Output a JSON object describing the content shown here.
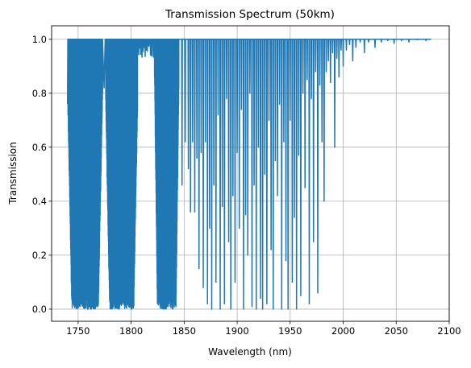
{
  "chart_data": {
    "type": "line",
    "title": "Transmission Spectrum (50km)",
    "xlabel": "Wavelength (nm)",
    "ylabel": "Transmission",
    "xlim": [
      1725,
      2100
    ],
    "ylim": [
      -0.045,
      1.05
    ],
    "x_ticks": [
      1750,
      1800,
      1850,
      1900,
      1950,
      2000,
      2050,
      2100
    ],
    "y_ticks": [
      0.0,
      0.2,
      0.4,
      0.6,
      0.8,
      1.0
    ],
    "x_tick_labels": [
      "1750",
      "1800",
      "1850",
      "1900",
      "1950",
      "2000",
      "2050",
      "2100"
    ],
    "y_tick_labels": [
      "0.0",
      "0.2",
      "0.4",
      "0.6",
      "0.8",
      "1.0"
    ],
    "grid": true,
    "line_color": "#1f77b4",
    "x_range": [
      1740,
      2083
    ],
    "bands": [
      {
        "from": 1740,
        "to": 1773,
        "min": 0.0,
        "note": "dense absorption band"
      },
      {
        "from": 1775,
        "to": 1806,
        "min": 0.0,
        "note": "dense absorption band"
      },
      {
        "from": 1808,
        "to": 1822,
        "min": 0.8,
        "note": "window near 1.0"
      },
      {
        "from": 1822,
        "to": 1845,
        "min": 0.0,
        "note": "dense absorption band"
      }
    ],
    "sample_points": [
      {
        "x": 1740,
        "y": 0.76
      },
      {
        "x": 1741,
        "y": 1.0
      },
      {
        "x": 1745,
        "y": 0.95
      },
      {
        "x": 1750,
        "y": 0.1
      },
      {
        "x": 1755,
        "y": 0.0
      },
      {
        "x": 1760,
        "y": 0.0
      },
      {
        "x": 1765,
        "y": 0.2
      },
      {
        "x": 1770,
        "y": 0.62
      },
      {
        "x": 1774,
        "y": 0.82
      },
      {
        "x": 1780,
        "y": 0.05
      },
      {
        "x": 1785,
        "y": 0.0
      },
      {
        "x": 1790,
        "y": 0.0
      },
      {
        "x": 1798,
        "y": 0.02
      },
      {
        "x": 1803,
        "y": 0.1
      },
      {
        "x": 1812,
        "y": 0.95
      },
      {
        "x": 1818,
        "y": 0.98
      },
      {
        "x": 1825,
        "y": 0.05
      },
      {
        "x": 1835,
        "y": 0.0
      },
      {
        "x": 1843,
        "y": 0.0
      }
    ],
    "dips": [
      [
        1848,
        0.46
      ],
      [
        1851,
        0.62
      ],
      [
        1854,
        0.52
      ],
      [
        1856,
        0.36
      ],
      [
        1858,
        0.62
      ],
      [
        1860,
        0.36
      ],
      [
        1862,
        0.56
      ],
      [
        1864,
        0.15
      ],
      [
        1866,
        0.58
      ],
      [
        1868,
        0.08
      ],
      [
        1870,
        0.62
      ],
      [
        1872,
        0.02
      ],
      [
        1874,
        0.3
      ],
      [
        1876,
        0.0
      ],
      [
        1878,
        0.46
      ],
      [
        1880,
        0.1
      ],
      [
        1882,
        0.72
      ],
      [
        1884,
        0.0
      ],
      [
        1886,
        0.38
      ],
      [
        1888,
        0.02
      ],
      [
        1890,
        0.78
      ],
      [
        1892,
        0.25
      ],
      [
        1894,
        0.0
      ],
      [
        1896,
        0.42
      ],
      [
        1898,
        0.1
      ],
      [
        1900,
        0.58
      ],
      [
        1902,
        0.3
      ],
      [
        1904,
        0.74
      ],
      [
        1906,
        0.0
      ],
      [
        1908,
        0.35
      ],
      [
        1910,
        0.2
      ],
      [
        1912,
        0.8
      ],
      [
        1914,
        0.01
      ],
      [
        1916,
        0.46
      ],
      [
        1918,
        0.0
      ],
      [
        1920,
        0.6
      ],
      [
        1922,
        0.04
      ],
      [
        1924,
        0.0
      ],
      [
        1926,
        0.5
      ],
      [
        1928,
        0.02
      ],
      [
        1930,
        0.7
      ],
      [
        1932,
        0.22
      ],
      [
        1934,
        0.0
      ],
      [
        1936,
        0.55
      ],
      [
        1938,
        0.42
      ],
      [
        1940,
        0.76
      ],
      [
        1942,
        0.0
      ],
      [
        1944,
        0.62
      ],
      [
        1946,
        0.18
      ],
      [
        1948,
        0.0
      ],
      [
        1950,
        0.7
      ],
      [
        1952,
        0.1
      ],
      [
        1954,
        0.34
      ],
      [
        1956,
        0.0
      ],
      [
        1958,
        0.57
      ],
      [
        1960,
        0.05
      ],
      [
        1962,
        0.8
      ],
      [
        1964,
        0.45
      ],
      [
        1966,
        0.85
      ],
      [
        1968,
        0.02
      ],
      [
        1970,
        0.78
      ],
      [
        1972,
        0.25
      ],
      [
        1974,
        0.88
      ],
      [
        1976,
        0.06
      ],
      [
        1978,
        0.83
      ],
      [
        1980,
        0.62
      ],
      [
        1982,
        0.4
      ],
      [
        1984,
        0.88
      ],
      [
        1986,
        0.92
      ],
      [
        1988,
        0.84
      ],
      [
        1990,
        0.95
      ],
      [
        1992,
        0.6
      ],
      [
        1994,
        0.93
      ],
      [
        1996,
        0.86
      ],
      [
        1998,
        0.96
      ],
      [
        2000,
        0.9
      ],
      [
        2003,
        0.96
      ],
      [
        2006,
        0.98
      ],
      [
        2009,
        0.92
      ],
      [
        2012,
        0.97
      ],
      [
        2016,
        0.99
      ],
      [
        2020,
        0.95
      ],
      [
        2024,
        0.99
      ],
      [
        2030,
        0.97
      ],
      [
        2036,
        0.99
      ],
      [
        2042,
        0.995
      ],
      [
        2048,
        0.985
      ],
      [
        2055,
        0.995
      ],
      [
        2062,
        0.99
      ],
      [
        2070,
        0.998
      ],
      [
        2078,
        0.995
      ]
    ]
  }
}
